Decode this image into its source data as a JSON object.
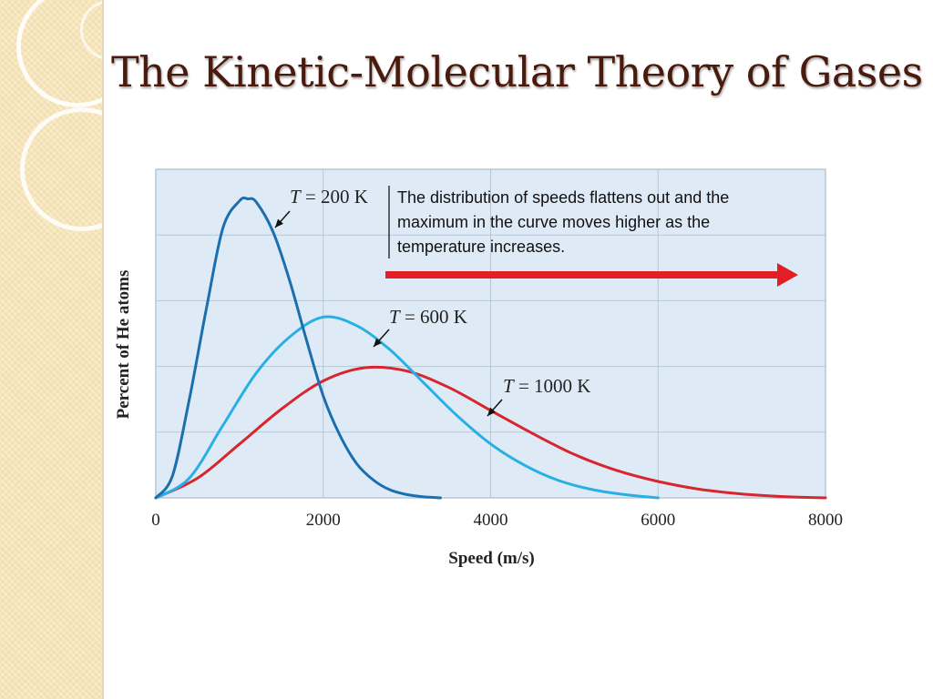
{
  "slide": {
    "title": "The Kinetic-Molecular Theory of Gases"
  },
  "colors": {
    "title": "#4a1a0c",
    "plot_background": "#deebf7",
    "grid": "#b8c7d6",
    "accent_arrow": "#e21f26"
  },
  "chart_data": {
    "type": "line",
    "title": "",
    "xlabel": "Speed (m/s)",
    "ylabel": "Percent of He atoms",
    "xlim": [
      0,
      8000
    ],
    "ylim": [
      0,
      5
    ],
    "x_ticks": [
      "0",
      "2000",
      "4000",
      "6000",
      "8000"
    ],
    "grid": true,
    "series": [
      {
        "name": "T = 200 K",
        "color": "#1a6fae",
        "label_parts": [
          "T",
          " = 200 K"
        ],
        "x": [
          0,
          200,
          400,
          600,
          800,
          1000,
          1100,
          1200,
          1400,
          1600,
          1800,
          2000,
          2200,
          2400,
          2600,
          2800,
          3000,
          3200,
          3400
        ],
        "y": [
          0,
          0.34,
          1.5,
          2.85,
          4.1,
          4.52,
          4.55,
          4.5,
          4.05,
          3.3,
          2.4,
          1.55,
          0.95,
          0.52,
          0.27,
          0.12,
          0.05,
          0.015,
          0
        ]
      },
      {
        "name": "T = 600 K",
        "color": "#29b0e3",
        "label_parts": [
          "T",
          " = 600 K"
        ],
        "x": [
          0,
          400,
          800,
          1200,
          1600,
          2000,
          2400,
          2800,
          3200,
          3600,
          4000,
          4400,
          4800,
          5200,
          5600,
          6000
        ],
        "y": [
          0,
          0.3,
          1.1,
          1.9,
          2.45,
          2.75,
          2.62,
          2.25,
          1.75,
          1.25,
          0.82,
          0.5,
          0.27,
          0.13,
          0.05,
          0
        ]
      },
      {
        "name": "T = 1000 K",
        "color": "#d7262e",
        "label_parts": [
          "T",
          " = 1000 K"
        ],
        "x": [
          0,
          500,
          1000,
          1500,
          2000,
          2500,
          3000,
          3500,
          4000,
          4500,
          5000,
          5500,
          6000,
          6500,
          7000,
          7500,
          8000
        ],
        "y": [
          0,
          0.3,
          0.82,
          1.35,
          1.78,
          1.98,
          1.93,
          1.68,
          1.33,
          0.98,
          0.66,
          0.42,
          0.25,
          0.13,
          0.06,
          0.02,
          0
        ]
      }
    ],
    "annotation": {
      "lines": [
        "The distribution of speeds flattens out and the",
        "maximum in the curve moves higher as the",
        "temperature increases."
      ],
      "arrow_direction": "right"
    }
  }
}
